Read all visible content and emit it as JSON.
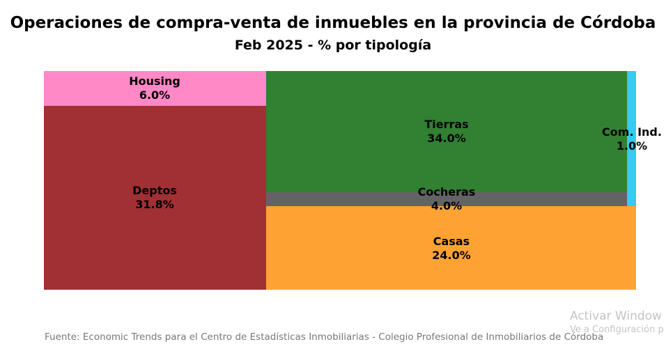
{
  "chart_data": {
    "type": "treemap",
    "title": "Operaciones de compra-venta de inmuebles en la provincia de Córdoba",
    "subtitle": "Feb 2025 - % por tipología",
    "series": [
      {
        "name": "Housing",
        "value": 6.0,
        "label": "6.0%",
        "color": "#ff88c6"
      },
      {
        "name": "Deptos",
        "value": 31.8,
        "label": "31.8%",
        "color": "#a03033"
      },
      {
        "name": "Tierras",
        "value": 34.0,
        "label": "34.0%",
        "color": "#328032"
      },
      {
        "name": "Cocheras",
        "value": 4.0,
        "label": "4.0%",
        "color": "#646264"
      },
      {
        "name": "Com. Ind.",
        "value": 1.0,
        "label": "1.0%",
        "color": "#33ccf2"
      },
      {
        "name": "Casas",
        "value": 24.0,
        "label": "24.0%",
        "color": "#ffa234"
      }
    ]
  },
  "footer": {
    "source": "Fuente: Economic Trends para el Centro de Estadísticas Inmobiliarias - Colegio Profesional de Inmobiliarios de Córdoba"
  },
  "watermark": {
    "line1": "Activar Window",
    "line2": "Ve a Configuración p"
  }
}
